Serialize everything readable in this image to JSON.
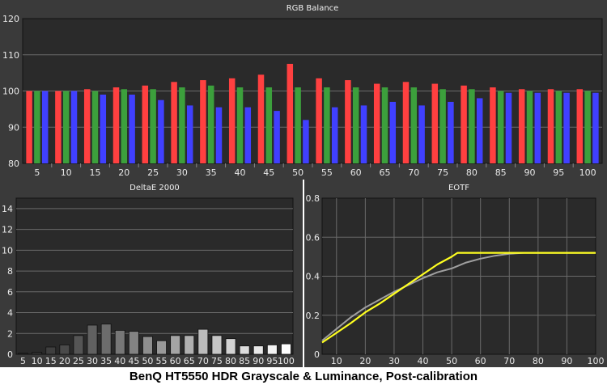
{
  "caption": "BenQ HT5550 HDR Grayscale & Luminance, Post-calibration",
  "colors": {
    "panel_bg": "#3a3a3a",
    "plot_bg": "#2a2a2a",
    "grid": "#6a6a6a",
    "red": "#ff4040",
    "green": "#3ca03c",
    "blue": "#4040ff",
    "target_curve": "#a0a0a0",
    "measured_curve": "#ffff20"
  },
  "chart_data": [
    {
      "type": "bar",
      "title": "RGB Balance",
      "categories": [
        "5",
        "10",
        "15",
        "20",
        "25",
        "30",
        "35",
        "40",
        "45",
        "50",
        "55",
        "60",
        "65",
        "70",
        "75",
        "80",
        "85",
        "90",
        "95",
        "100"
      ],
      "series": [
        {
          "color": "red",
          "values": [
            100,
            100,
            100.5,
            101,
            101.5,
            102.5,
            103,
            103.5,
            104.5,
            107.5,
            103.5,
            103,
            102,
            102.5,
            102,
            101.5,
            101,
            100.5,
            100.5,
            100.5
          ]
        },
        {
          "color": "green",
          "values": [
            100,
            100,
            100,
            100.5,
            100.5,
            101,
            101.5,
            101,
            101,
            101,
            101,
            101,
            101,
            101,
            100.5,
            100.5,
            100,
            100,
            100,
            100
          ]
        },
        {
          "color": "blue",
          "values": [
            100,
            100,
            99,
            99,
            97.5,
            96,
            95.5,
            95.5,
            94.5,
            92,
            95.5,
            96,
            97,
            96,
            97,
            98,
            99.5,
            99.5,
            99.5,
            99.5
          ]
        }
      ],
      "ylim": [
        80,
        120
      ],
      "yticks": [
        80,
        90,
        100,
        110,
        120
      ],
      "grid": true
    },
    {
      "type": "bar",
      "title": "DeltaE 2000",
      "categories": [
        "5",
        "10",
        "15",
        "20",
        "25",
        "30",
        "35",
        "40",
        "45",
        "50",
        "55",
        "60",
        "65",
        "70",
        "75",
        "80",
        "85",
        "90",
        "95",
        "100"
      ],
      "values": [
        0.1,
        0.2,
        0.7,
        0.9,
        1.8,
        2.8,
        2.9,
        2.3,
        2.2,
        1.7,
        1.3,
        1.8,
        1.8,
        2.4,
        1.8,
        1.5,
        0.8,
        0.8,
        0.9,
        1.0
      ],
      "ylim": [
        0,
        15
      ],
      "yticks": [
        0,
        2,
        4,
        6,
        8,
        10,
        12,
        14
      ],
      "grid": true
    },
    {
      "type": "line",
      "title": "EOTF",
      "xlim": [
        5,
        100
      ],
      "ylim": [
        0,
        0.8
      ],
      "xticks": [
        10,
        20,
        30,
        40,
        50,
        60,
        70,
        80,
        90,
        100
      ],
      "yticks": [
        0,
        0.2,
        0.4,
        0.6,
        0.8
      ],
      "grid": true,
      "series": [
        {
          "color": "target_curve",
          "x": [
            5,
            10,
            15,
            20,
            25,
            30,
            35,
            40,
            45,
            50,
            55,
            60,
            65,
            70,
            75,
            80,
            85,
            90,
            95,
            100
          ],
          "y": [
            0.07,
            0.13,
            0.19,
            0.24,
            0.28,
            0.32,
            0.355,
            0.39,
            0.42,
            0.44,
            0.47,
            0.49,
            0.505,
            0.515,
            0.52,
            0.52,
            0.52,
            0.52,
            0.52,
            0.52
          ]
        },
        {
          "color": "measured_curve",
          "x": [
            5,
            10,
            15,
            20,
            25,
            30,
            35,
            40,
            45,
            50,
            52,
            55,
            60,
            65,
            70,
            75,
            80,
            85,
            90,
            95,
            100
          ],
          "y": [
            0.06,
            0.11,
            0.16,
            0.215,
            0.26,
            0.31,
            0.36,
            0.41,
            0.46,
            0.5,
            0.52,
            0.52,
            0.52,
            0.52,
            0.52,
            0.52,
            0.52,
            0.52,
            0.52,
            0.52,
            0.52
          ]
        }
      ]
    }
  ]
}
